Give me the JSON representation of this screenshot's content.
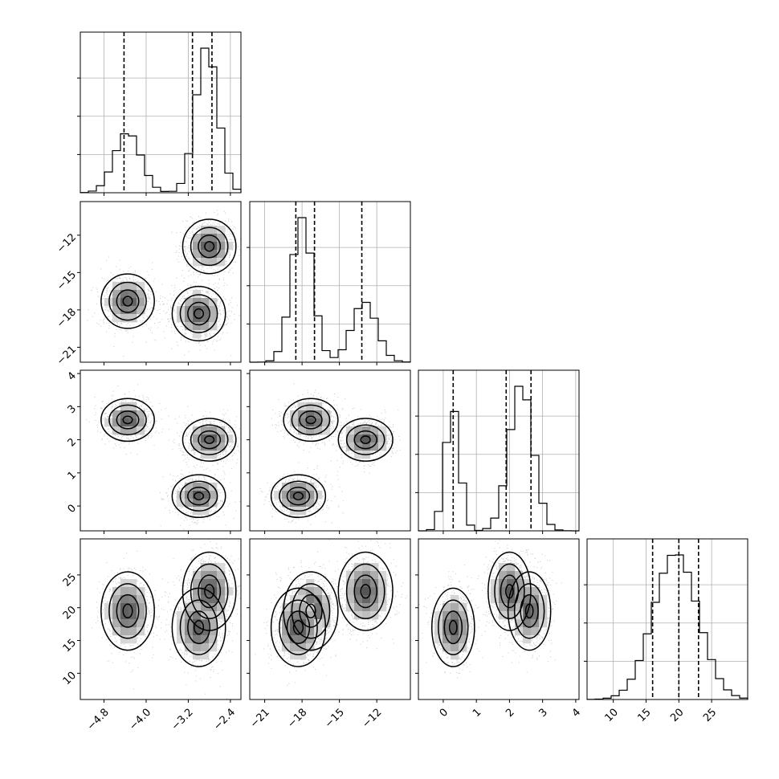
{
  "chart_data": {
    "type": "corner",
    "title": "",
    "parameters": [
      {
        "key": "p0",
        "label": "",
        "range": [
          -5.25,
          -2.2
        ],
        "ticks": [
          -4.8,
          -4.0,
          -3.2,
          -2.4
        ],
        "tick_labels": [
          "−4.8",
          "−4.0",
          "−3.2",
          "−2.4"
        ],
        "quantiles": [
          -4.42,
          -3.12,
          -2.75
        ],
        "modes": [
          {
            "center": -4.35,
            "width": 0.25,
            "weight": 0.33
          },
          {
            "center": -2.85,
            "width": 0.21,
            "weight": 0.67
          }
        ]
      },
      {
        "key": "p1",
        "label": "",
        "range": [
          -22.2,
          -9.3
        ],
        "ticks": [
          -21,
          -18,
          -15,
          -12
        ],
        "tick_labels": [
          "−21",
          "−18",
          "−15",
          "−12"
        ],
        "quantiles": [
          -18.5,
          -17.0,
          -13.2
        ],
        "modes": [
          {
            "center": -18.0,
            "width": 0.85,
            "weight": 0.67
          },
          {
            "center": -13.0,
            "width": 1.0,
            "weight": 0.33
          }
        ]
      },
      {
        "key": "p2",
        "label": "",
        "range": [
          -0.75,
          4.1
        ],
        "ticks": [
          0,
          1,
          2,
          3,
          4
        ],
        "tick_labels": [
          "0",
          "1",
          "2",
          "3",
          "4"
        ],
        "quantiles": [
          0.3,
          1.9,
          2.65
        ],
        "modes": [
          {
            "center": 0.28,
            "width": 0.22,
            "weight": 0.34
          },
          {
            "center": 2.35,
            "width": 0.36,
            "weight": 0.66
          }
        ]
      },
      {
        "key": "p3",
        "label": "",
        "range": [
          6,
          30.5
        ],
        "ticks": [
          10,
          15,
          20,
          25
        ],
        "tick_labels": [
          "10",
          "15",
          "20",
          "25"
        ],
        "quantiles": [
          16.0,
          20.0,
          23.0
        ],
        "modes": [
          {
            "center": 19.5,
            "width": 3.4,
            "weight": 1.0
          }
        ]
      }
    ],
    "histogram_bins": 20,
    "clusters": [
      {
        "p0": -4.35,
        "p1": -17.3,
        "p2": 2.6,
        "p3": 19.5
      },
      {
        "p0": -3.0,
        "p1": -18.3,
        "p2": 0.3,
        "p3": 17.0
      },
      {
        "p0": -2.8,
        "p1": -12.9,
        "p2": 2.0,
        "p3": 22.5
      }
    ],
    "grid": true,
    "legend": "none"
  }
}
